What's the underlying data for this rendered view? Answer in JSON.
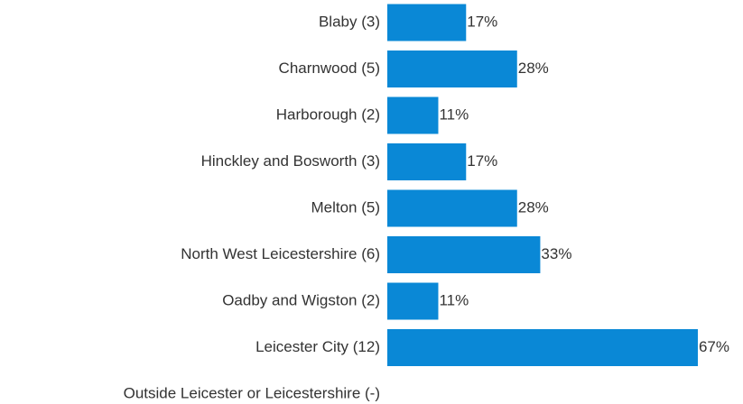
{
  "chart_data": {
    "type": "bar",
    "orientation": "horizontal",
    "color": "#0a88d6",
    "categories": [
      "Blaby (3)",
      "Charnwood (5)",
      "Harborough (2)",
      "Hinckley and Bosworth (3)",
      "Melton (5)",
      "North West Leicestershire (6)",
      "Oadby and Wigston (2)",
      "Leicester City (12)",
      "Outside Leicester or Leicestershire (-)"
    ],
    "values": [
      17,
      28,
      11,
      17,
      28,
      33,
      11,
      67,
      null
    ],
    "value_labels": [
      "17%",
      "28%",
      "11%",
      "17%",
      "28%",
      "33%",
      "11%",
      "67%",
      null
    ]
  }
}
